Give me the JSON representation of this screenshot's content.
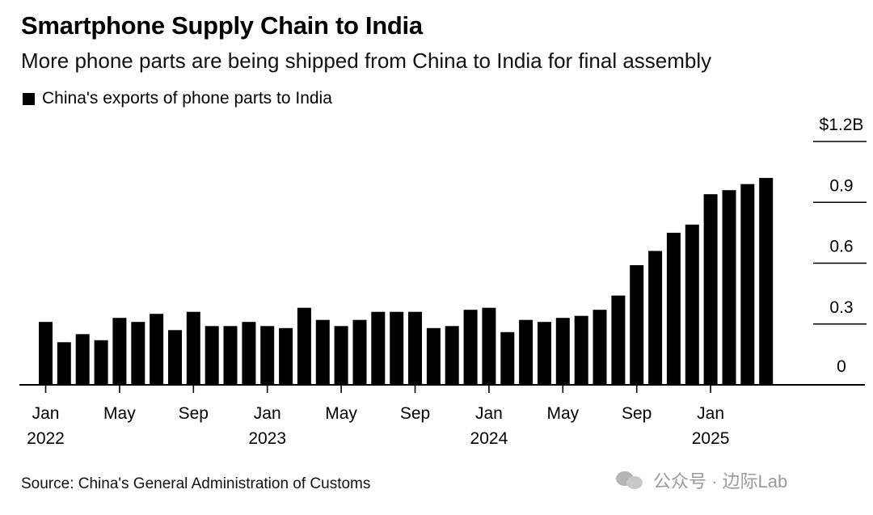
{
  "title": "Smartphone Supply Chain to India",
  "subtitle": "More phone parts are being shipped from China to India for final assembly",
  "legend_label": "China's exports of phone parts to India",
  "source": "Source: China's General Administration of Customs",
  "watermark": "公众号 · 边际Lab",
  "colors": {
    "bar": "#000000",
    "axis": "#000000",
    "text": "#000000",
    "watermark": "#9a9a9a"
  },
  "chart_data": {
    "type": "bar",
    "title": "Smartphone Supply Chain to India",
    "subtitle": "More phone parts are being shipped from China to India for final assembly",
    "unit": "$B",
    "ylim": [
      0,
      1.2
    ],
    "y_ticks": [
      {
        "value": 0,
        "label": "0"
      },
      {
        "value": 0.3,
        "label": "0.3"
      },
      {
        "value": 0.6,
        "label": "0.6"
      },
      {
        "value": 0.9,
        "label": "0.9"
      },
      {
        "value": 1.2,
        "label": "$1.2B"
      }
    ],
    "y_axis_side": "right",
    "grid": false,
    "legend_position": "top-left",
    "x_ticks": [
      {
        "index": 0,
        "month": "Jan",
        "year": "2022"
      },
      {
        "index": 4,
        "month": "May",
        "year": ""
      },
      {
        "index": 8,
        "month": "Sep",
        "year": ""
      },
      {
        "index": 12,
        "month": "Jan",
        "year": "2023"
      },
      {
        "index": 16,
        "month": "May",
        "year": ""
      },
      {
        "index": 20,
        "month": "Sep",
        "year": ""
      },
      {
        "index": 24,
        "month": "Jan",
        "year": "2024"
      },
      {
        "index": 28,
        "month": "May",
        "year": ""
      },
      {
        "index": 32,
        "month": "Sep",
        "year": ""
      },
      {
        "index": 36,
        "month": "Jan",
        "year": "2025"
      }
    ],
    "series": [
      {
        "name": "China's exports of phone parts to India",
        "x": [
          "2022-01",
          "2022-02",
          "2022-03",
          "2022-04",
          "2022-05",
          "2022-06",
          "2022-07",
          "2022-08",
          "2022-09",
          "2022-10",
          "2022-11",
          "2022-12",
          "2023-01",
          "2023-02",
          "2023-03",
          "2023-04",
          "2023-05",
          "2023-06",
          "2023-07",
          "2023-08",
          "2023-09",
          "2023-10",
          "2023-11",
          "2023-12",
          "2024-01",
          "2024-02",
          "2024-03",
          "2024-04",
          "2024-05",
          "2024-06",
          "2024-07",
          "2024-08",
          "2024-09",
          "2024-10",
          "2024-11",
          "2024-12",
          "2025-01",
          "2025-02",
          "2025-03",
          "2025-04"
        ],
        "values": [
          0.31,
          0.21,
          0.25,
          0.22,
          0.33,
          0.31,
          0.35,
          0.27,
          0.36,
          0.29,
          0.29,
          0.31,
          0.29,
          0.28,
          0.38,
          0.32,
          0.29,
          0.32,
          0.36,
          0.36,
          0.36,
          0.28,
          0.29,
          0.37,
          0.38,
          0.26,
          0.32,
          0.31,
          0.33,
          0.34,
          0.37,
          0.44,
          0.59,
          0.66,
          0.75,
          0.79,
          0.94,
          0.96,
          0.99,
          1.02
        ]
      }
    ]
  }
}
